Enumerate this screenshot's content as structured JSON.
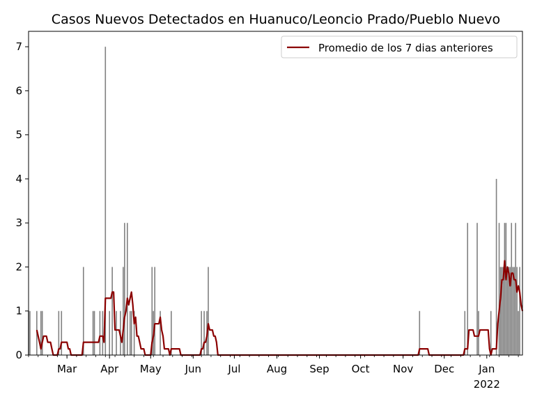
{
  "chart_data": {
    "type": "bar",
    "title": "Casos Nuevos Detectados en Huanuco/Leoncio Prado/Pueblo Nuevo",
    "xlabel": "",
    "ylabel": "",
    "ylim": [
      0,
      7.35
    ],
    "y_ticks": [
      0,
      1,
      2,
      3,
      4,
      5,
      6,
      7
    ],
    "x_range_days": [
      0,
      360
    ],
    "x_ticks": [
      {
        "day": 28,
        "label": "Mar"
      },
      {
        "day": 59,
        "label": "Apr"
      },
      {
        "day": 89,
        "label": "May"
      },
      {
        "day": 120,
        "label": "Jun"
      },
      {
        "day": 150,
        "label": "Jul"
      },
      {
        "day": 181,
        "label": "Aug"
      },
      {
        "day": 212,
        "label": "Sep"
      },
      {
        "day": 242,
        "label": "Oct"
      },
      {
        "day": 273,
        "label": "Nov"
      },
      {
        "day": 303,
        "label": "Dec"
      },
      {
        "day": 334,
        "label": "Jan"
      }
    ],
    "x_year_label": {
      "day": 334,
      "label": "2022"
    },
    "bar_color": "#808080",
    "line_color": "#8b0000",
    "legend": {
      "position": "top-right",
      "label": "Promedio de los 7 dias anteriores"
    },
    "series": [
      {
        "kind": "bar",
        "points": [
          [
            0,
            1
          ],
          [
            1,
            1
          ],
          [
            6,
            1
          ],
          [
            9,
            1
          ],
          [
            10,
            1
          ],
          [
            22,
            1
          ],
          [
            24,
            1
          ],
          [
            40,
            2
          ],
          [
            47,
            1
          ],
          [
            48,
            1
          ],
          [
            52,
            1
          ],
          [
            54,
            1
          ],
          [
            56,
            7
          ],
          [
            59,
            1
          ],
          [
            61,
            2
          ],
          [
            64,
            1
          ],
          [
            67,
            1
          ],
          [
            69,
            2
          ],
          [
            70,
            3
          ],
          [
            72,
            3
          ],
          [
            74,
            1
          ],
          [
            75,
            1
          ],
          [
            77,
            1
          ],
          [
            90,
            2
          ],
          [
            91,
            1
          ],
          [
            92,
            2
          ],
          [
            96,
            1
          ],
          [
            104,
            1
          ],
          [
            126,
            1
          ],
          [
            128,
            1
          ],
          [
            130,
            1
          ],
          [
            131,
            2
          ],
          [
            285,
            1
          ],
          [
            318,
            1
          ],
          [
            320,
            3
          ],
          [
            327,
            3
          ],
          [
            328,
            1
          ],
          [
            337,
            1
          ],
          [
            341,
            4
          ],
          [
            343,
            3
          ],
          [
            344,
            2
          ],
          [
            345,
            2
          ],
          [
            346,
            2
          ],
          [
            347,
            3
          ],
          [
            348,
            3
          ],
          [
            349,
            2
          ],
          [
            350,
            2
          ],
          [
            351,
            2
          ],
          [
            352,
            3
          ],
          [
            353,
            2
          ],
          [
            354,
            2
          ],
          [
            355,
            3
          ],
          [
            356,
            2
          ],
          [
            357,
            1
          ],
          [
            358,
            2
          ]
        ]
      },
      {
        "kind": "line",
        "name": "Promedio de los 7 dias anteriores",
        "points": [
          [
            6,
            0.57
          ],
          [
            7,
            0.43
          ],
          [
            8,
            0.29
          ],
          [
            9,
            0.14
          ],
          [
            10,
            0.29
          ],
          [
            11,
            0.43
          ],
          [
            12,
            0.43
          ],
          [
            13,
            0.43
          ],
          [
            14,
            0.29
          ],
          [
            15,
            0.29
          ],
          [
            16,
            0.29
          ],
          [
            17,
            0.14
          ],
          [
            18,
            0
          ],
          [
            19,
            0
          ],
          [
            20,
            0
          ],
          [
            21,
            0
          ],
          [
            22,
            0.14
          ],
          [
            23,
            0.14
          ],
          [
            24,
            0.29
          ],
          [
            25,
            0.29
          ],
          [
            26,
            0.29
          ],
          [
            27,
            0.29
          ],
          [
            28,
            0.29
          ],
          [
            29,
            0.14
          ],
          [
            30,
            0.14
          ],
          [
            31,
            0
          ],
          [
            32,
            0
          ],
          [
            33,
            0
          ],
          [
            34,
            0
          ],
          [
            35,
            0
          ],
          [
            36,
            0
          ],
          [
            37,
            0
          ],
          [
            38,
            0
          ],
          [
            39,
            0
          ],
          [
            40,
            0.29
          ],
          [
            41,
            0.29
          ],
          [
            42,
            0.29
          ],
          [
            43,
            0.29
          ],
          [
            44,
            0.29
          ],
          [
            45,
            0.29
          ],
          [
            46,
            0.29
          ],
          [
            47,
            0.29
          ],
          [
            48,
            0.29
          ],
          [
            49,
            0.29
          ],
          [
            50,
            0.29
          ],
          [
            51,
            0.29
          ],
          [
            52,
            0.43
          ],
          [
            53,
            0.43
          ],
          [
            54,
            0.43
          ],
          [
            55,
            0.29
          ],
          [
            56,
            1.29
          ],
          [
            57,
            1.29
          ],
          [
            58,
            1.29
          ],
          [
            59,
            1.29
          ],
          [
            60,
            1.29
          ],
          [
            61,
            1.43
          ],
          [
            62,
            1.43
          ],
          [
            63,
            0.57
          ],
          [
            64,
            0.57
          ],
          [
            65,
            0.57
          ],
          [
            66,
            0.57
          ],
          [
            67,
            0.43
          ],
          [
            68,
            0.29
          ],
          [
            69,
            0.57
          ],
          [
            70,
            0.86
          ],
          [
            71,
            1.0
          ],
          [
            72,
            1.29
          ],
          [
            73,
            1.14
          ],
          [
            74,
            1.29
          ],
          [
            75,
            1.43
          ],
          [
            76,
            1.14
          ],
          [
            77,
            0.71
          ],
          [
            78,
            0.86
          ],
          [
            79,
            0.43
          ],
          [
            80,
            0.43
          ],
          [
            81,
            0.29
          ],
          [
            82,
            0.14
          ],
          [
            83,
            0.14
          ],
          [
            84,
            0.14
          ],
          [
            85,
            0
          ],
          [
            86,
            0
          ],
          [
            87,
            0
          ],
          [
            88,
            0
          ],
          [
            89,
            0
          ],
          [
            90,
            0.29
          ],
          [
            91,
            0.43
          ],
          [
            92,
            0.71
          ],
          [
            93,
            0.71
          ],
          [
            94,
            0.71
          ],
          [
            95,
            0.71
          ],
          [
            96,
            0.86
          ],
          [
            97,
            0.57
          ],
          [
            98,
            0.43
          ],
          [
            99,
            0.14
          ],
          [
            100,
            0.14
          ],
          [
            101,
            0.14
          ],
          [
            102,
            0.14
          ],
          [
            103,
            0
          ],
          [
            104,
            0.14
          ],
          [
            105,
            0.14
          ],
          [
            106,
            0.14
          ],
          [
            107,
            0.14
          ],
          [
            108,
            0.14
          ],
          [
            109,
            0.14
          ],
          [
            110,
            0.14
          ],
          [
            111,
            0
          ],
          [
            112,
            0
          ],
          [
            113,
            0
          ],
          [
            114,
            0
          ],
          [
            115,
            0
          ],
          [
            116,
            0
          ],
          [
            117,
            0
          ],
          [
            118,
            0
          ],
          [
            119,
            0
          ],
          [
            120,
            0
          ],
          [
            121,
            0
          ],
          [
            122,
            0
          ],
          [
            123,
            0
          ],
          [
            124,
            0
          ],
          [
            125,
            0
          ],
          [
            126,
            0.14
          ],
          [
            127,
            0.14
          ],
          [
            128,
            0.29
          ],
          [
            129,
            0.29
          ],
          [
            130,
            0.43
          ],
          [
            131,
            0.71
          ],
          [
            132,
            0.57
          ],
          [
            133,
            0.57
          ],
          [
            134,
            0.57
          ],
          [
            135,
            0.43
          ],
          [
            136,
            0.43
          ],
          [
            137,
            0.29
          ],
          [
            138,
            0
          ],
          [
            139,
            0
          ],
          [
            140,
            0
          ],
          [
            141,
            0
          ],
          [
            142,
            0
          ],
          [
            150,
            0
          ],
          [
            180,
            0
          ],
          [
            210,
            0
          ],
          [
            240,
            0
          ],
          [
            270,
            0
          ],
          [
            284,
            0
          ],
          [
            285,
            0.14
          ],
          [
            286,
            0.14
          ],
          [
            287,
            0.14
          ],
          [
            288,
            0.14
          ],
          [
            289,
            0.14
          ],
          [
            290,
            0.14
          ],
          [
            291,
            0.14
          ],
          [
            292,
            0
          ],
          [
            300,
            0
          ],
          [
            310,
            0
          ],
          [
            317,
            0
          ],
          [
            318,
            0.14
          ],
          [
            319,
            0.14
          ],
          [
            320,
            0.14
          ],
          [
            321,
            0.57
          ],
          [
            322,
            0.57
          ],
          [
            323,
            0.57
          ],
          [
            324,
            0.57
          ],
          [
            325,
            0.43
          ],
          [
            326,
            0.43
          ],
          [
            327,
            0.43
          ],
          [
            328,
            0.43
          ],
          [
            329,
            0.57
          ],
          [
            330,
            0.57
          ],
          [
            331,
            0.57
          ],
          [
            332,
            0.57
          ],
          [
            333,
            0.57
          ],
          [
            334,
            0.57
          ],
          [
            335,
            0.57
          ],
          [
            336,
            0.14
          ],
          [
            337,
            0
          ],
          [
            338,
            0.14
          ],
          [
            339,
            0.14
          ],
          [
            340,
            0.14
          ],
          [
            341,
            0.14
          ],
          [
            342,
            0.71
          ],
          [
            343,
            1.0
          ],
          [
            344,
            1.29
          ],
          [
            345,
            1.71
          ],
          [
            346,
            1.71
          ],
          [
            347,
            2.14
          ],
          [
            348,
            1.71
          ],
          [
            349,
            2.0
          ],
          [
            350,
            1.86
          ],
          [
            351,
            1.57
          ],
          [
            352,
            1.86
          ],
          [
            353,
            1.86
          ],
          [
            354,
            1.71
          ],
          [
            355,
            1.71
          ],
          [
            356,
            1.43
          ],
          [
            357,
            1.57
          ],
          [
            358,
            1.43
          ],
          [
            359,
            1.14
          ],
          [
            360,
            1.0
          ]
        ]
      }
    ]
  }
}
